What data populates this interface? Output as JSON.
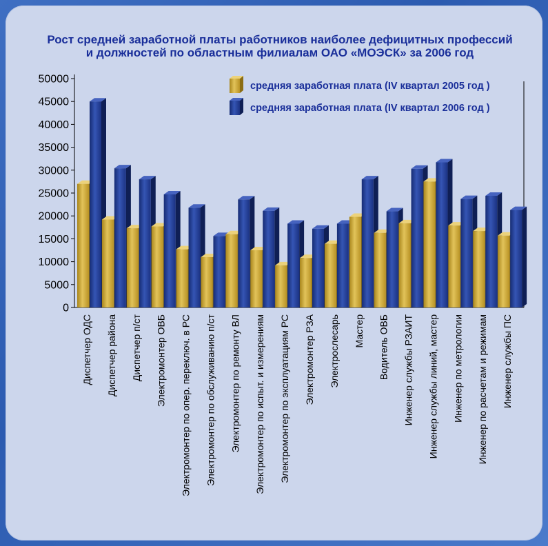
{
  "chart_data": {
    "type": "bar",
    "title_lines": [
      "Рост средней заработной платы работников наиболее дефицитных профессий",
      "и должностей по областным филиалам ОАО «МОЭСК» за 2006 год"
    ],
    "ylim": [
      0,
      50000
    ],
    "yticks": [
      "50000",
      "45000",
      "40000",
      "35000",
      "30000",
      "25000",
      "20000",
      "15000",
      "10000",
      "5000",
      "0"
    ],
    "legend_position": "top-right",
    "categories": [
      "Диспетчер ОДС",
      "Диспетчер района",
      "Диспетчер п/ст",
      "Электромонтер ОВБ",
      "Электромонтер по опер. переключ. в РС",
      "Электромонтер по обслуживанию п/ст",
      "Электромонтер по ремонту ВЛ",
      "Электромонтер по испыт. и измерениям",
      "Электромонтер по эксплуатациям РС",
      "Электромонтер РЗА",
      "Электрослесарь",
      "Мастер",
      "Водитель ОВБ",
      "Инженер службы РЗАИТ",
      "Инженер службы линий, мастер",
      "Инженер по метрологии",
      "Инженер по расчетам и режимам",
      "Инженер службы ПС"
    ],
    "series": [
      {
        "name": "средняя заработная плата (IV квартал 2005 год )",
        "color": "#c9a42c",
        "values": [
          27000,
          19200,
          17300,
          17700,
          12700,
          11000,
          16000,
          12500,
          9200,
          10800,
          13900,
          19800,
          16300,
          18400,
          27500,
          17900,
          16700,
          15700
        ]
      },
      {
        "name": "средняя заработная плата (IV квартал 2006 год )",
        "color": "#1f3a8f",
        "values": [
          45000,
          30400,
          28000,
          24700,
          21800,
          15600,
          23600,
          21100,
          18300,
          17200,
          18300,
          28000,
          21000,
          30300,
          31700,
          23700,
          24400,
          21300
        ]
      }
    ]
  }
}
